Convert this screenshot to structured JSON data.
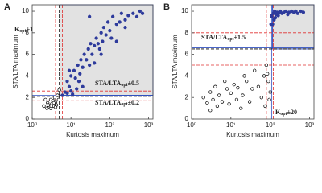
{
  "chart_data": [
    {
      "type": "scatter",
      "panel_label": "A",
      "x_label": "Kurtosis maximum",
      "y_label": "STA/LTA maximum",
      "log_x": true,
      "xlim": [
        1,
        1300
      ],
      "ylim": [
        0,
        10.6
      ],
      "xticks": [
        {
          "value": 1,
          "label": "10⁰"
        },
        {
          "value": 10,
          "label": "10¹"
        },
        {
          "value": 100,
          "label": "10²"
        },
        {
          "value": 1000,
          "label": "10³"
        }
      ],
      "yticks": [
        0,
        2,
        4,
        6,
        8,
        10
      ],
      "shaded_region": {
        "xlim": [
          5.2,
          1300
        ],
        "ylim": [
          2.2,
          10.6
        ]
      },
      "reference_lines": [
        {
          "axis": "x",
          "value": 4,
          "color": "#e03030",
          "dash": true
        },
        {
          "axis": "x",
          "value": 6,
          "color": "#e03030",
          "dash": true
        },
        {
          "axis": "x",
          "value": 5,
          "color": "#000000",
          "dash": true
        },
        {
          "axis": "x",
          "value": 5.2,
          "color": "#3050c0",
          "dash": false
        },
        {
          "axis": "y",
          "value": 1.7,
          "color": "#e03030",
          "dash": true
        },
        {
          "axis": "y",
          "value": 2.6,
          "color": "#e03030",
          "dash": true
        },
        {
          "axis": "y",
          "value": 2.1,
          "color": "#000000",
          "dash": true
        },
        {
          "axis": "y",
          "value": 2.2,
          "color": "#3050c0",
          "dash": false
        }
      ],
      "annotations": [
        [
          "K",
          "opt",
          "±1"
        ],
        [
          "STA/LTA",
          "opt",
          "±0.5"
        ],
        [
          "STA/LTA",
          "opt",
          "±0.2"
        ]
      ],
      "series": [
        {
          "color": "#2e3b9c",
          "marker": "filled",
          "x": [
            6,
            7,
            8,
            9,
            10,
            12,
            13,
            15,
            17,
            18,
            20,
            22,
            25,
            28,
            30,
            32,
            35,
            40,
            45,
            50,
            55,
            60,
            65,
            70,
            80,
            90,
            100,
            110,
            120,
            150,
            180,
            200,
            250,
            300,
            400,
            500,
            600,
            20,
            40,
            14,
            8,
            10,
            30,
            60,
            150,
            250,
            11,
            9,
            700,
            16
          ],
          "y": [
            2.2,
            2.5,
            3.5,
            3,
            4,
            4.5,
            3.8,
            5,
            4.2,
            5.5,
            4.8,
            6,
            5.5,
            6.5,
            5,
            7,
            6,
            6.8,
            7.5,
            7,
            6.5,
            8,
            7.2,
            8.5,
            7.8,
            9,
            8.2,
            7.5,
            9.5,
            8.8,
            9,
            9.8,
            9.2,
            9.6,
            9.8,
            9.5,
            10,
            3,
            5.2,
            2.8,
            2.4,
            2.6,
            9.5,
            6,
            7.2,
            8.5,
            2.3,
            4.5,
            9.8,
            3.5
          ]
        },
        {
          "color": "#000000",
          "marker": "open",
          "x": [
            2,
            2.5,
            2.8,
            3,
            3.2,
            3.5,
            3.8,
            4,
            4.2,
            2.2,
            3,
            2.6,
            3.4,
            4.5,
            5,
            3.6,
            4.8,
            2.4,
            3.1,
            4
          ],
          "y": [
            1.2,
            1.5,
            1.1,
            1.8,
            1.4,
            1.2,
            2,
            1.6,
            1.3,
            1.8,
            1,
            1.3,
            1.7,
            2.2,
            2.7,
            1.5,
            1.8,
            1,
            1.2,
            1.1
          ]
        }
      ]
    },
    {
      "type": "scatter",
      "panel_label": "B",
      "x_label": "Kurtosis maximum",
      "y_label": "STA/LTA maximum",
      "log_x": true,
      "xlim": [
        1,
        1300
      ],
      "ylim": [
        0,
        10.6
      ],
      "xticks": [
        {
          "value": 1,
          "label": "10⁰"
        },
        {
          "value": 10,
          "label": "10¹"
        },
        {
          "value": 100,
          "label": "10²"
        },
        {
          "value": 1000,
          "label": "10³"
        }
      ],
      "yticks": [
        0,
        2,
        4,
        6,
        8,
        10
      ],
      "shaded_region": {
        "xlim": [
          115,
          1300
        ],
        "ylim": [
          6.5,
          10.6
        ]
      },
      "reference_lines": [
        {
          "axis": "x",
          "value": 80,
          "color": "#e03030",
          "dash": true
        },
        {
          "axis": "x",
          "value": 120,
          "color": "#e03030",
          "dash": true
        },
        {
          "axis": "x",
          "value": 100,
          "color": "#000000",
          "dash": true
        },
        {
          "axis": "x",
          "value": 110,
          "color": "#3050c0",
          "dash": false
        },
        {
          "axis": "y",
          "value": 5,
          "color": "#e03030",
          "dash": true
        },
        {
          "axis": "y",
          "value": 8,
          "color": "#e03030",
          "dash": true
        },
        {
          "axis": "y",
          "value": 6.5,
          "color": "#000000",
          "dash": true
        },
        {
          "axis": "y",
          "value": 6.6,
          "color": "#3050c0",
          "dash": false
        }
      ],
      "annotations": [
        [
          "STA/LTA",
          "opt",
          "±1.5"
        ],
        [
          "K",
          "opt",
          "±20"
        ]
      ],
      "series": [
        {
          "color": "#2e3b9c",
          "marker": "filled",
          "x": [
            110,
            115,
            120,
            130,
            140,
            150,
            160,
            180,
            200,
            220,
            250,
            280,
            300,
            350,
            400,
            450,
            500,
            600,
            700,
            125,
            135,
            170,
            105,
            108
          ],
          "y": [
            9.5,
            8.8,
            9.8,
            10,
            9.7,
            9.9,
            9.6,
            10,
            9.8,
            9.9,
            10,
            9.7,
            9.9,
            10,
            9.9,
            10,
            9.8,
            10,
            9.9,
            9.2,
            9.4,
            9.9,
            8.8,
            9.6
          ]
        },
        {
          "color": "#000000",
          "marker": "open",
          "x": [
            2,
            2.5,
            3,
            3.5,
            4,
            4.5,
            5,
            6,
            7,
            8,
            9,
            10,
            12,
            14,
            15,
            18,
            20,
            25,
            30,
            35,
            40,
            50,
            60,
            70,
            80,
            90,
            95,
            100,
            85,
            75,
            3,
            22
          ],
          "y": [
            2,
            1.5,
            2.5,
            1.8,
            3,
            1.2,
            2.2,
            1.6,
            3.5,
            2.8,
            1.4,
            2.4,
            3.2,
            1.8,
            2.9,
            1,
            2.2,
            3.5,
            1.6,
            2.8,
            4.5,
            3,
            2,
            4,
            5,
            3.5,
            1.8,
            2.5,
            4.2,
            1.2,
            0.8,
            4
          ]
        }
      ]
    }
  ]
}
